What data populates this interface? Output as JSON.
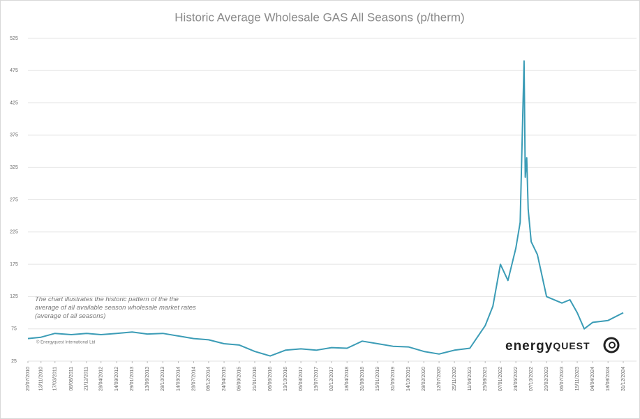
{
  "chart_data": {
    "type": "line",
    "title": "Historic Average Wholesale GAS All Seasons (p/therm)",
    "annotation": "The chart illustrates the historic pattern of the the average of all available season wholesale market rates (average of all seasons)",
    "copyright": "© Energyquest International Ltd",
    "logo": {
      "part1": "energy",
      "part2": "QUEST"
    },
    "color": "#3b9cb6",
    "grid": true,
    "ylim": [
      25,
      525
    ],
    "yticks": [
      25,
      75,
      125,
      175,
      225,
      275,
      325,
      375,
      425,
      475,
      525
    ],
    "xlim": [
      "20/07/2010",
      "31/12/2024"
    ],
    "xticks": [
      "20/07/2010",
      "13/11/2010",
      "17/03/2011",
      "08/08/2011",
      "21/12/2011",
      "28/04/2012",
      "14/09/2012",
      "29/01/2013",
      "13/06/2013",
      "28/10/2013",
      "14/03/2014",
      "28/07/2014",
      "08/12/2014",
      "24/04/2015",
      "06/09/2015",
      "21/01/2016",
      "06/06/2016",
      "19/10/2016",
      "05/03/2017",
      "19/07/2017",
      "02/12/2017",
      "18/04/2018",
      "31/08/2018",
      "15/01/2019",
      "31/05/2019",
      "14/10/2019",
      "28/02/2020",
      "12/07/2020",
      "25/11/2020",
      "11/04/2021",
      "25/08/2021",
      "07/01/2022",
      "24/05/2022",
      "07/10/2022",
      "20/02/2023",
      "06/07/2023",
      "19/11/2023",
      "04/04/2024",
      "18/08/2024",
      "31/12/2024"
    ],
    "x": [
      "20/07/2010",
      "13/11/2010",
      "17/03/2011",
      "08/08/2011",
      "21/12/2011",
      "28/04/2012",
      "14/09/2012",
      "29/01/2013",
      "13/06/2013",
      "28/10/2013",
      "14/03/2014",
      "28/07/2014",
      "08/12/2014",
      "24/04/2015",
      "06/09/2015",
      "21/01/2016",
      "06/06/2016",
      "19/10/2016",
      "05/03/2017",
      "19/07/2017",
      "02/12/2017",
      "18/04/2018",
      "31/08/2018",
      "15/01/2019",
      "31/05/2019",
      "14/10/2019",
      "28/02/2020",
      "12/07/2020",
      "25/11/2020",
      "11/04/2021",
      "25/08/2021",
      "01/11/2021",
      "07/01/2022",
      "15/03/2022",
      "24/05/2022",
      "01/07/2022",
      "05/08/2022",
      "15/08/2022",
      "28/08/2022",
      "10/09/2022",
      "07/10/2022",
      "01/12/2022",
      "20/02/2023",
      "06/07/2023",
      "15/09/2023",
      "19/11/2023",
      "20/01/2024",
      "04/04/2024",
      "18/08/2024",
      "31/12/2024"
    ],
    "values": [
      60,
      62,
      68,
      66,
      68,
      66,
      68,
      70,
      67,
      68,
      64,
      60,
      58,
      52,
      50,
      40,
      33,
      42,
      44,
      42,
      46,
      45,
      56,
      52,
      48,
      47,
      40,
      36,
      42,
      45,
      80,
      110,
      175,
      150,
      200,
      240,
      490,
      310,
      340,
      260,
      210,
      190,
      125,
      115,
      120,
      100,
      75,
      85,
      88,
      100
    ]
  }
}
